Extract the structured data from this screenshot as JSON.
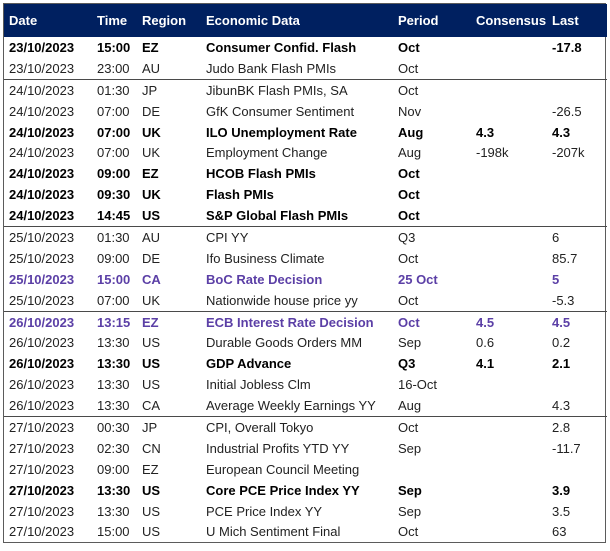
{
  "headers": {
    "date": "Date",
    "time": "Time",
    "region": "Region",
    "data": "Economic Data",
    "period": "Period",
    "consensus": "Consensus",
    "last": "Last"
  },
  "rows": [
    {
      "date": "23/10/2023",
      "time": "15:00",
      "region": "EZ",
      "data": "Consumer Confid. Flash",
      "period": "Oct",
      "consensus": "",
      "last": "-17.8",
      "style": "bold",
      "group_start": true
    },
    {
      "date": "23/10/2023",
      "time": "23:00",
      "region": "AU",
      "data": "Judo Bank Flash PMIs",
      "period": "Oct",
      "consensus": "",
      "last": "",
      "style": "normal",
      "group_start": false
    },
    {
      "date": "24/10/2023",
      "time": "01:30",
      "region": "JP",
      "data": "JibunBK Flash PMIs, SA",
      "period": "Oct",
      "consensus": "",
      "last": "",
      "style": "normal",
      "group_start": true
    },
    {
      "date": "24/10/2023",
      "time": "07:00",
      "region": "DE",
      "data": "GfK Consumer Sentiment",
      "period": "Nov",
      "consensus": "",
      "last": "-26.5",
      "style": "normal",
      "group_start": false
    },
    {
      "date": "24/10/2023",
      "time": "07:00",
      "region": "UK",
      "data": "ILO Unemployment Rate",
      "period": "Aug",
      "consensus": "4.3",
      "last": "4.3",
      "style": "bold",
      "group_start": false
    },
    {
      "date": "24/10/2023",
      "time": "07:00",
      "region": "UK",
      "data": "Employment Change",
      "period": "Aug",
      "consensus": "-198k",
      "last": "-207k",
      "style": "normal",
      "group_start": false
    },
    {
      "date": "24/10/2023",
      "time": "09:00",
      "region": "EZ",
      "data": "HCOB Flash PMIs",
      "period": "Oct",
      "consensus": "",
      "last": "",
      "style": "bold",
      "group_start": false
    },
    {
      "date": "24/10/2023",
      "time": "09:30",
      "region": "UK",
      "data": "Flash PMIs",
      "period": "Oct",
      "consensus": "",
      "last": "",
      "style": "bold",
      "group_start": false
    },
    {
      "date": "24/10/2023",
      "time": "14:45",
      "region": "US",
      "data": "S&P Global Flash PMIs",
      "period": "Oct",
      "consensus": "",
      "last": "",
      "style": "bold",
      "group_start": false
    },
    {
      "date": "25/10/2023",
      "time": "01:30",
      "region": "AU",
      "data": "CPI YY",
      "period": "Q3",
      "consensus": "",
      "last": "6",
      "style": "normal",
      "group_start": true
    },
    {
      "date": "25/10/2023",
      "time": "09:00",
      "region": "DE",
      "data": "Ifo Business Climate",
      "period": "Oct",
      "consensus": "",
      "last": "85.7",
      "style": "normal",
      "group_start": false
    },
    {
      "date": "25/10/2023",
      "time": "15:00",
      "region": "CA",
      "data": "BoC Rate Decision",
      "period": "25 Oct",
      "consensus": "",
      "last": "5",
      "style": "purple",
      "group_start": false
    },
    {
      "date": "25/10/2023",
      "time": "07:00",
      "region": "UK",
      "data": "Nationwide house price yy",
      "period": "Oct",
      "consensus": "",
      "last": "-5.3",
      "style": "normal",
      "group_start": false
    },
    {
      "date": "26/10/2023",
      "time": "13:15",
      "region": "EZ",
      "data": "ECB Interest Rate Decision",
      "period": "Oct",
      "consensus": "4.5",
      "last": "4.5",
      "style": "purple",
      "group_start": true
    },
    {
      "date": "26/10/2023",
      "time": "13:30",
      "region": "US",
      "data": "Durable Goods Orders MM",
      "period": "Sep",
      "consensus": "0.6",
      "last": "0.2",
      "style": "normal",
      "group_start": false
    },
    {
      "date": "26/10/2023",
      "time": "13:30",
      "region": "US",
      "data": "GDP Advance",
      "period": "Q3",
      "consensus": "4.1",
      "last": "2.1",
      "style": "bold",
      "group_start": false
    },
    {
      "date": "26/10/2023",
      "time": "13:30",
      "region": "US",
      "data": "Initial Jobless Clm",
      "period": "16-Oct",
      "consensus": "",
      "last": "",
      "style": "normal",
      "group_start": false
    },
    {
      "date": "26/10/2023",
      "time": "13:30",
      "region": "CA",
      "data": "Average Weekly Earnings YY",
      "period": "Aug",
      "consensus": "",
      "last": "4.3",
      "style": "normal",
      "group_start": false
    },
    {
      "date": "27/10/2023",
      "time": "00:30",
      "region": "JP",
      "data": "CPI, Overall Tokyo",
      "period": "Oct",
      "consensus": "",
      "last": "2.8",
      "style": "normal",
      "group_start": true
    },
    {
      "date": "27/10/2023",
      "time": "02:30",
      "region": "CN",
      "data": "Industrial Profits YTD YY",
      "period": "Sep",
      "consensus": "",
      "last": "-11.7",
      "style": "normal",
      "group_start": false
    },
    {
      "date": "27/10/2023",
      "time": "09:00",
      "region": "EZ",
      "data": "European Council Meeting",
      "period": "",
      "consensus": "",
      "last": "",
      "style": "normal",
      "group_start": false
    },
    {
      "date": "27/10/2023",
      "time": "13:30",
      "region": "US",
      "data": "Core PCE Price Index YY",
      "period": "Sep",
      "consensus": "",
      "last": "3.9",
      "style": "bold",
      "group_start": false
    },
    {
      "date": "27/10/2023",
      "time": "13:30",
      "region": "US",
      "data": "PCE Price Index YY",
      "period": "Sep",
      "consensus": "",
      "last": "3.5",
      "style": "normal",
      "group_start": false
    },
    {
      "date": "27/10/2023",
      "time": "15:00",
      "region": "US",
      "data": "U Mich Sentiment Final",
      "period": "Oct",
      "consensus": "",
      "last": "63",
      "style": "normal",
      "group_start": false
    }
  ],
  "colors": {
    "header_bg": "#002060",
    "header_text": "#ffffff",
    "highlight_text": "#5b3fa6"
  }
}
